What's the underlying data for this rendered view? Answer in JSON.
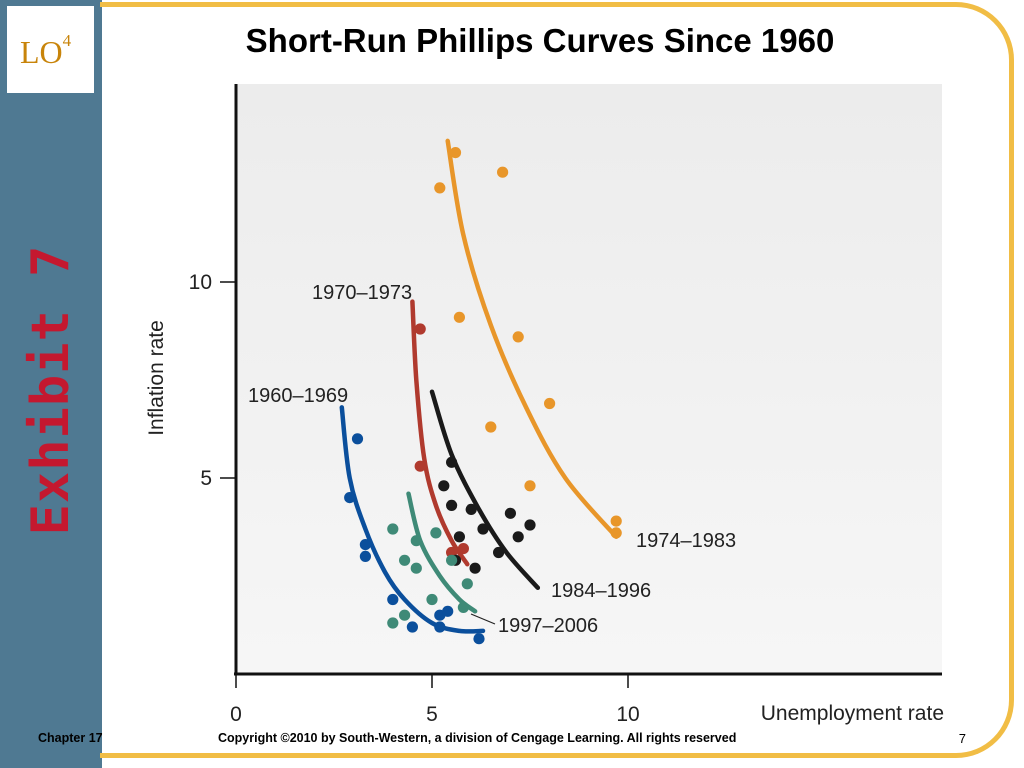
{
  "slide": {
    "lo_label": "LO",
    "lo_superscript": "4",
    "exhibit": "Exhibit 7",
    "title": "Short-Run Phillips Curves Since 1960",
    "footer_chapter": "Chapter 17",
    "footer_copyright": "Copyright ©2010 by South-Western, a division of Cengage Learning.  All rights reserved",
    "page_number": "7"
  },
  "colors": {
    "sidebar": "#4f7992",
    "frame": "#f1bd45",
    "lo": "#c8840a",
    "exhibit": "#c4182f"
  },
  "chart_data": {
    "type": "scatter",
    "xlabel": "Unemployment rate",
    "ylabel": "Inflation rate",
    "x_ticks": [
      "0",
      "5",
      "10"
    ],
    "y_ticks": [
      "5",
      "10"
    ],
    "xlim": [
      0,
      18
    ],
    "ylim": [
      0,
      15
    ],
    "series": [
      {
        "name": "1960–1969",
        "color": "#0b4f9c",
        "points": [
          [
            3.1,
            6.0
          ],
          [
            2.9,
            4.5
          ],
          [
            3.3,
            3.3
          ],
          [
            3.3,
            3.0
          ],
          [
            4.0,
            1.9
          ],
          [
            4.5,
            1.2
          ],
          [
            5.2,
            1.5
          ],
          [
            5.2,
            1.2
          ],
          [
            5.4,
            1.6
          ],
          [
            6.2,
            0.9
          ]
        ],
        "curve": [
          [
            2.7,
            6.8
          ],
          [
            2.9,
            5.0
          ],
          [
            3.3,
            3.7
          ],
          [
            3.8,
            2.6
          ],
          [
            4.3,
            1.9
          ],
          [
            5.0,
            1.3
          ],
          [
            5.7,
            1.1
          ],
          [
            6.3,
            1.1
          ]
        ]
      },
      {
        "name": "1970–1973",
        "color": "#b03a2e",
        "points": [
          [
            4.7,
            8.8
          ],
          [
            4.7,
            5.3
          ],
          [
            5.5,
            3.1
          ],
          [
            5.8,
            3.2
          ]
        ],
        "curve": [
          [
            4.5,
            9.5
          ],
          [
            4.6,
            7.5
          ],
          [
            4.8,
            5.5
          ],
          [
            5.1,
            4.3
          ],
          [
            5.5,
            3.4
          ],
          [
            5.9,
            2.8
          ]
        ]
      },
      {
        "name": "1974–1983",
        "color": "#e8962a",
        "points": [
          [
            5.6,
            13.3
          ],
          [
            6.8,
            12.8
          ],
          [
            5.2,
            12.4
          ],
          [
            5.7,
            9.1
          ],
          [
            7.2,
            8.6
          ],
          [
            8.0,
            6.9
          ],
          [
            6.5,
            6.3
          ],
          [
            7.5,
            4.8
          ],
          [
            9.7,
            3.9
          ],
          [
            9.7,
            3.6
          ]
        ],
        "curve": [
          [
            5.4,
            13.6
          ],
          [
            5.8,
            11.2
          ],
          [
            6.5,
            8.9
          ],
          [
            7.4,
            6.8
          ],
          [
            8.4,
            5.0
          ],
          [
            9.7,
            3.5
          ]
        ]
      },
      {
        "name": "1984–1996",
        "color": "#1a1a1a",
        "points": [
          [
            5.5,
            5.4
          ],
          [
            5.3,
            4.8
          ],
          [
            5.5,
            4.3
          ],
          [
            6.0,
            4.2
          ],
          [
            7.0,
            4.1
          ],
          [
            6.3,
            3.7
          ],
          [
            7.5,
            3.8
          ],
          [
            5.7,
            3.5
          ],
          [
            7.2,
            3.5
          ],
          [
            6.7,
            3.1
          ],
          [
            5.6,
            2.9
          ],
          [
            6.1,
            2.7
          ]
        ],
        "curve": [
          [
            5.0,
            7.2
          ],
          [
            5.5,
            5.6
          ],
          [
            6.2,
            4.2
          ],
          [
            6.9,
            3.1
          ],
          [
            7.7,
            2.2
          ]
        ]
      },
      {
        "name": "1997–2006",
        "color": "#3f8a77",
        "points": [
          [
            4.0,
            3.7
          ],
          [
            4.6,
            3.4
          ],
          [
            5.1,
            3.6
          ],
          [
            4.3,
            2.9
          ],
          [
            4.6,
            2.7
          ],
          [
            5.5,
            2.9
          ],
          [
            5.9,
            2.3
          ],
          [
            5.0,
            1.9
          ],
          [
            5.8,
            1.7
          ],
          [
            4.3,
            1.5
          ],
          [
            4.0,
            1.3
          ]
        ],
        "curve": [
          [
            4.4,
            4.6
          ],
          [
            4.7,
            3.4
          ],
          [
            5.2,
            2.5
          ],
          [
            5.7,
            1.9
          ],
          [
            6.1,
            1.6
          ]
        ]
      }
    ]
  }
}
